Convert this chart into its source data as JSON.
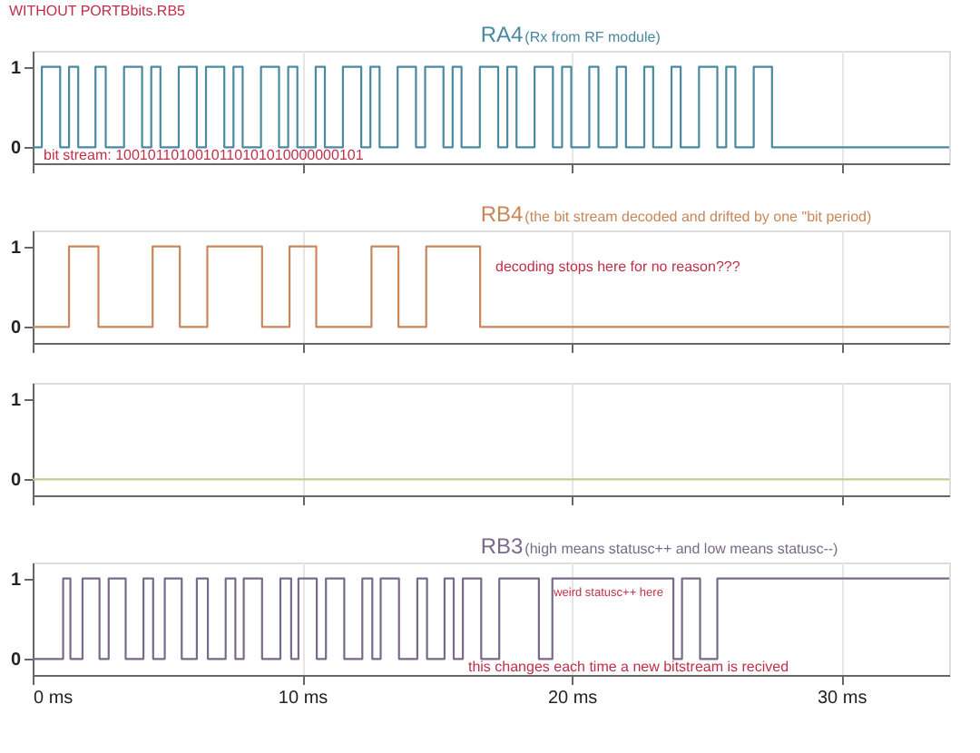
{
  "chart_data": [
    {
      "type": "step",
      "title": "RA4",
      "subtitle": "(Rx from RF module)",
      "color": "#4a8aa0",
      "x": [
        0,
        0.34,
        1.02,
        1.35,
        1.69,
        2.33,
        2.71,
        3.39,
        4.06,
        4.4,
        4.74,
        5.42,
        6.09,
        6.43,
        7.11,
        7.45,
        7.79,
        8.47,
        9.14,
        9.48,
        9.82,
        10.5,
        10.84,
        11.51,
        12.19,
        12.53,
        12.87,
        13.54,
        14.22,
        14.56,
        15.24,
        15.58,
        15.91,
        16.59,
        17.27,
        17.61,
        17.95,
        18.62,
        19.3,
        19.64,
        19.98,
        20.65,
        20.99,
        21.67,
        22.01,
        22.69,
        23.02,
        23.7,
        24.04,
        24.72,
        25.4,
        25.73,
        26.07,
        26.75,
        27.43,
        34
      ],
      "values": [
        0,
        1,
        0,
        1,
        0,
        1,
        0,
        1,
        0,
        1,
        0,
        1,
        0,
        1,
        0,
        1,
        0,
        1,
        0,
        1,
        0,
        1,
        0,
        1,
        0,
        1,
        0,
        1,
        0,
        1,
        0,
        1,
        0,
        1,
        0,
        1,
        0,
        1,
        0,
        1,
        0,
        1,
        0,
        1,
        0,
        1,
        0,
        1,
        0,
        1,
        0,
        1,
        0,
        1,
        0,
        0
      ],
      "annotations": [
        "WITHOUT PORTBbits.RB5",
        "bit stream: 1001011010010110101010000000101"
      ],
      "xlim": [
        0,
        34
      ],
      "xticks": [
        0,
        10,
        20,
        30
      ],
      "ylim": [
        -0.2,
        1.2
      ],
      "yticks": [
        0,
        1
      ],
      "grid": "x",
      "tick_labels": "y"
    },
    {
      "type": "step",
      "title": "RB4",
      "subtitle": "(the bit stream decoded and drifted by one \"bit period)",
      "color": "#c8875a",
      "x": [
        0,
        1.35,
        2.44,
        4.45,
        5.46,
        6.48,
        8.51,
        9.53,
        10.52,
        12.57,
        13.57,
        14.6,
        16.6,
        34
      ],
      "values": [
        0,
        1,
        0,
        1,
        0,
        1,
        0,
        1,
        0,
        1,
        0,
        1,
        0,
        0
      ],
      "annotations": [
        "decoding stops here for no reason???"
      ],
      "xlim": [
        0,
        34
      ],
      "xticks": [
        0,
        10,
        20,
        30
      ],
      "ylim": [
        -0.2,
        1.2
      ],
      "yticks": [
        0,
        1
      ],
      "grid": "x",
      "tick_labels": "y"
    },
    {
      "type": "step",
      "color": "#c8c890",
      "x": [
        0,
        34
      ],
      "values": [
        0,
        0
      ],
      "xlim": [
        0,
        34
      ],
      "xticks": [
        0,
        10,
        20,
        30
      ],
      "ylim": [
        -0.2,
        1.2
      ],
      "yticks": [
        0,
        1
      ],
      "grid": "x",
      "tick_labels": "y"
    },
    {
      "type": "step",
      "title": "RB3",
      "subtitle": "(high means statusc++ and low means statusc--)",
      "color": "#7a6a8a",
      "x": [
        0,
        1.13,
        1.4,
        1.85,
        2.48,
        2.82,
        3.45,
        4.11,
        4.47,
        4.9,
        5.53,
        6.09,
        6.5,
        7.16,
        7.52,
        7.83,
        8.51,
        9.19,
        9.59,
        9.86,
        10.54,
        10.88,
        11.56,
        12.23,
        12.6,
        12.91,
        13.59,
        14.27,
        14.63,
        15.28,
        15.62,
        15.96,
        16.64,
        17.31,
        18.78,
        19.28,
        23.77,
        24.09,
        24.76,
        25.4,
        34
      ],
      "values": [
        0,
        1,
        0,
        1,
        0,
        1,
        0,
        1,
        0,
        1,
        0,
        1,
        0,
        1,
        0,
        1,
        0,
        1,
        0,
        1,
        0,
        1,
        0,
        1,
        0,
        1,
        0,
        1,
        0,
        1,
        0,
        1,
        0,
        1,
        0,
        1,
        0,
        1,
        0,
        1,
        1
      ],
      "annotations": [
        "weird statusc++ here",
        "this changes each time a new bitstream is recived"
      ],
      "xlim": [
        0,
        34
      ],
      "xticks": [
        {
          "value": 0,
          "label": "0 ms"
        },
        {
          "value": 10,
          "label": "10 ms"
        },
        {
          "value": 20,
          "label": "20 ms"
        },
        {
          "value": 30,
          "label": "30 ms"
        }
      ],
      "ylim": [
        -0.2,
        1.2
      ],
      "yticks": [
        0,
        1
      ],
      "grid": "x"
    }
  ]
}
